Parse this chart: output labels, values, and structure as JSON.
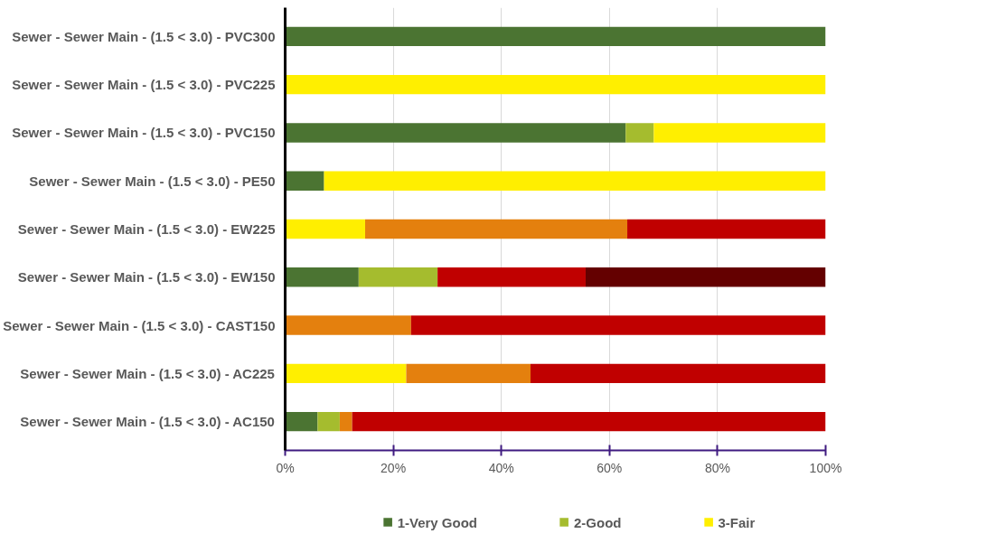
{
  "chart_data": {
    "type": "bar",
    "orientation": "horizontal",
    "stacked": true,
    "categories": [
      "Sewer - Sewer Main - (1.5 < 3.0) - PVC300",
      "Sewer - Sewer Main - (1.5 < 3.0) - PVC225",
      "Sewer - Sewer Main - (1.5 < 3.0) - PVC150",
      "Sewer - Sewer Main - (1.5 < 3.0) - PE50",
      "Sewer - Sewer Main - (1.5 < 3.0) - EW225",
      "Sewer - Sewer Main - (1.5 < 3.0) - EW150",
      "Sewer - Sewer Main - (1.5 < 3.0) - CAST150",
      "Sewer - Sewer Main - (1.5 < 3.0) - AC225",
      "Sewer - Sewer Main - (1.5 < 3.0) - AC150"
    ],
    "series": [
      {
        "name": "1-Very Good",
        "color": "#4b7432",
        "values": [
          100,
          0,
          63.0,
          7.2,
          0,
          13.6,
          0,
          0,
          6.0
        ]
      },
      {
        "name": "2-Good",
        "color": "#a5bc2e",
        "values": [
          0,
          0,
          5.2,
          0,
          0,
          14.6,
          0,
          0,
          4.1
        ]
      },
      {
        "name": "3-Fair",
        "color": "#ffef00",
        "values": [
          0,
          100,
          31.8,
          92.8,
          14.8,
          0,
          0,
          22.4,
          0
        ]
      },
      {
        "color": "#e4800e",
        "values": [
          0,
          0,
          0,
          0,
          48.5,
          0,
          23.3,
          23.0,
          2.3
        ]
      },
      {
        "color": "#c00000",
        "values": [
          0,
          0,
          0,
          0,
          36.7,
          27.4,
          76.7,
          54.6,
          87.6
        ]
      },
      {
        "color": "#640000",
        "values": [
          0,
          0,
          0,
          0,
          0,
          44.4,
          0,
          0,
          0
        ]
      }
    ],
    "xlim": [
      0,
      100
    ],
    "xticks": [
      {
        "value": 0,
        "label": "0%"
      },
      {
        "value": 20,
        "label": "20%"
      },
      {
        "value": 40,
        "label": "40%"
      },
      {
        "value": 60,
        "label": "60%"
      },
      {
        "value": 80,
        "label": "80%"
      },
      {
        "value": 100,
        "label": "100%"
      }
    ],
    "grid": "x",
    "legend": "bottom"
  }
}
